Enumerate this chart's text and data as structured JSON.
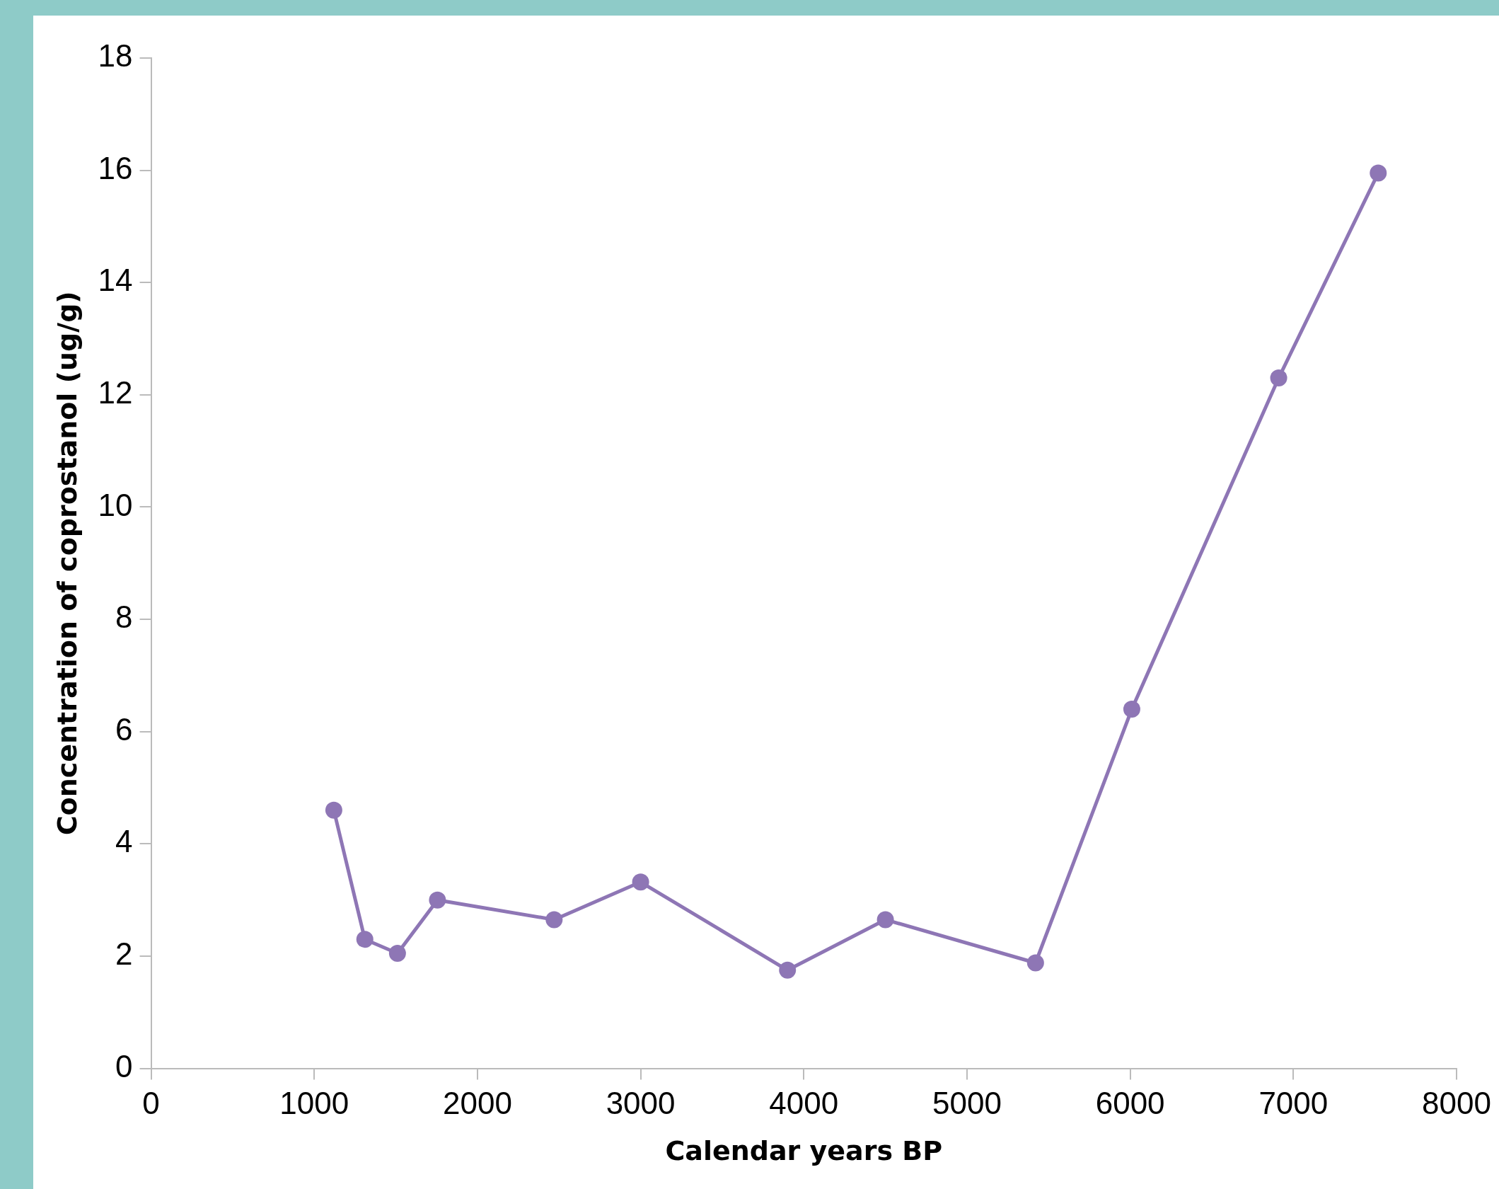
{
  "chart_data": {
    "type": "line",
    "xlabel": "Calendar years BP",
    "ylabel": "Concentration of coprostanol (ug/g)",
    "x": [
      1120,
      1310,
      1510,
      1755,
      2470,
      3000,
      3900,
      4500,
      5420,
      6010,
      6910,
      7520
    ],
    "series": [
      {
        "color": "#8e76b5",
        "values": [
          4.6,
          2.3,
          2.05,
          3.0,
          2.65,
          3.32,
          1.75,
          2.65,
          1.88,
          6.4,
          12.3,
          15.95
        ]
      }
    ],
    "xlim": [
      0,
      8000
    ],
    "xticks": [
      0,
      1000,
      2000,
      3000,
      4000,
      5000,
      6000,
      7000,
      8000
    ],
    "ylim": [
      0,
      18
    ],
    "yticks": [
      0,
      2,
      4,
      6,
      8,
      10,
      12,
      14,
      16,
      18
    ],
    "grid": false,
    "legend": false,
    "marker": "circle",
    "line_style": "solid"
  }
}
